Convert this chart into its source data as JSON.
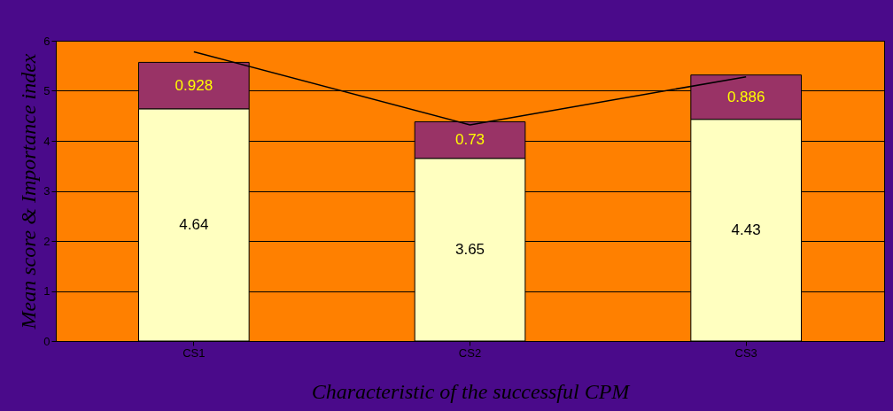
{
  "chart_data": {
    "type": "bar",
    "stacked": true,
    "xlabel": "Characteristic of the successful CPM",
    "ylabel": "Mean score & Importance index",
    "categories": [
      "CS1",
      "CS2",
      "CS3"
    ],
    "series": [
      {
        "color": "#ffffc0",
        "values": [
          4.64,
          3.65,
          4.43
        ],
        "value_labels": [
          "4.64",
          "3.65",
          "4.43"
        ]
      },
      {
        "color": "#993366",
        "values": [
          0.928,
          0.73,
          0.886
        ],
        "value_labels": [
          "0.928",
          "0.73",
          "0.886"
        ]
      },
      {
        "type": "line",
        "color": "#000000",
        "values": [
          5.78,
          4.32,
          5.28
        ]
      }
    ],
    "ylim": [
      0,
      6
    ],
    "yticks": [
      0,
      1,
      2,
      3,
      4,
      5,
      6
    ],
    "grid": "y"
  }
}
